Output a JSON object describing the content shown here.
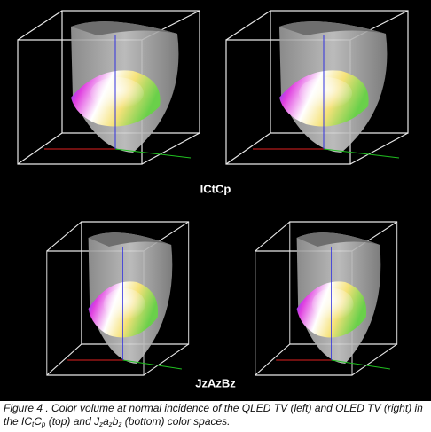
{
  "figure": {
    "labels": [
      "ICtCp",
      "JzAzBz"
    ],
    "caption": [
      "Figure 4 . Color volume at normal incidence of the QLED TV (left) and OLED TV (right) in the IC",
      "t",
      "C",
      "p",
      " (top) and J",
      "z",
      "a",
      "z",
      "b",
      "z",
      " (bottom) color spaces."
    ]
  }
}
